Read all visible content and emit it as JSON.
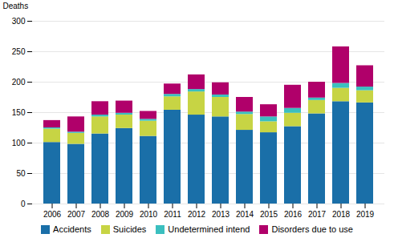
{
  "chart_data": {
    "type": "bar",
    "stacked": true,
    "ylabel": "Deaths",
    "categories": [
      "2006",
      "2007",
      "2008",
      "2009",
      "2010",
      "2011",
      "2012",
      "2013",
      "2014",
      "2015",
      "2016",
      "2017",
      "2018",
      "2019"
    ],
    "series": [
      {
        "name": "Accidents",
        "color": "#1a6fa8",
        "values": [
          101,
          98,
          115,
          124,
          111,
          154,
          146,
          143,
          121,
          117,
          127,
          148,
          168,
          166
        ]
      },
      {
        "name": "Suicides",
        "color": "#c7d444",
        "values": [
          22,
          18,
          28,
          22,
          25,
          22,
          38,
          32,
          26,
          18,
          22,
          22,
          22,
          20
        ]
      },
      {
        "name": "Undetermined intend",
        "color": "#3bbfbf",
        "values": [
          2,
          2,
          3,
          3,
          3,
          4,
          4,
          4,
          4,
          8,
          8,
          4,
          8,
          6
        ]
      },
      {
        "name": "Disorders due to use",
        "color": "#b0006a",
        "values": [
          12,
          25,
          22,
          20,
          13,
          17,
          24,
          20,
          24,
          20,
          38,
          26,
          60,
          35
        ]
      }
    ],
    "ylim": [
      0,
      300
    ],
    "yticks": [
      0,
      50,
      100,
      150,
      200,
      250,
      300
    ],
    "grid": true,
    "legend": "bottom"
  }
}
